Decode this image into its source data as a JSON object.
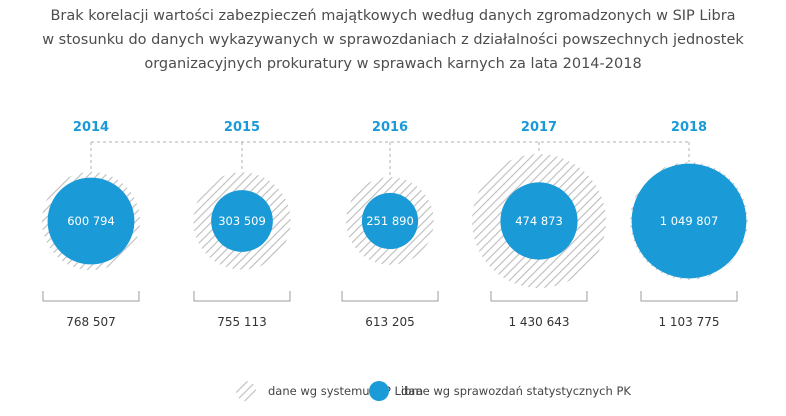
{
  "title_lines": [
    "Brak korelacji wartości zabezpieczeń majątkowych według danych zgromadzonych w SIP Libra",
    "w stosunku do danych wykazywanych w sprawozdaniach z działalności powszechnych jednostek",
    "organizacyjnych prokuratury w sprawach karnych za lata 2014-2018"
  ],
  "colors": {
    "accent": "#1a9ad6",
    "hatch": "#bdbdbd",
    "dash": "#b0b0b0",
    "text_dark": "#333333"
  },
  "chart_data": {
    "type": "bubble",
    "categories": [
      "2014",
      "2015",
      "2016",
      "2017",
      "2018"
    ],
    "series": [
      {
        "name": "dane wg systemu SIP Libra",
        "values": [
          768507,
          755113,
          613205,
          1430643,
          1103775
        ],
        "labels": [
          "768 507",
          "755 113",
          "613 205",
          "1 430 643",
          "1 103 775"
        ],
        "style": "hatched"
      },
      {
        "name": "dane wg sprawozdań statystycznych PK",
        "values": [
          600794,
          303509,
          251890,
          474873,
          1049807
        ],
        "labels": [
          "600 794",
          "303 509",
          "251 890",
          "474 873",
          "1 049 807"
        ],
        "style": "solid"
      }
    ]
  }
}
